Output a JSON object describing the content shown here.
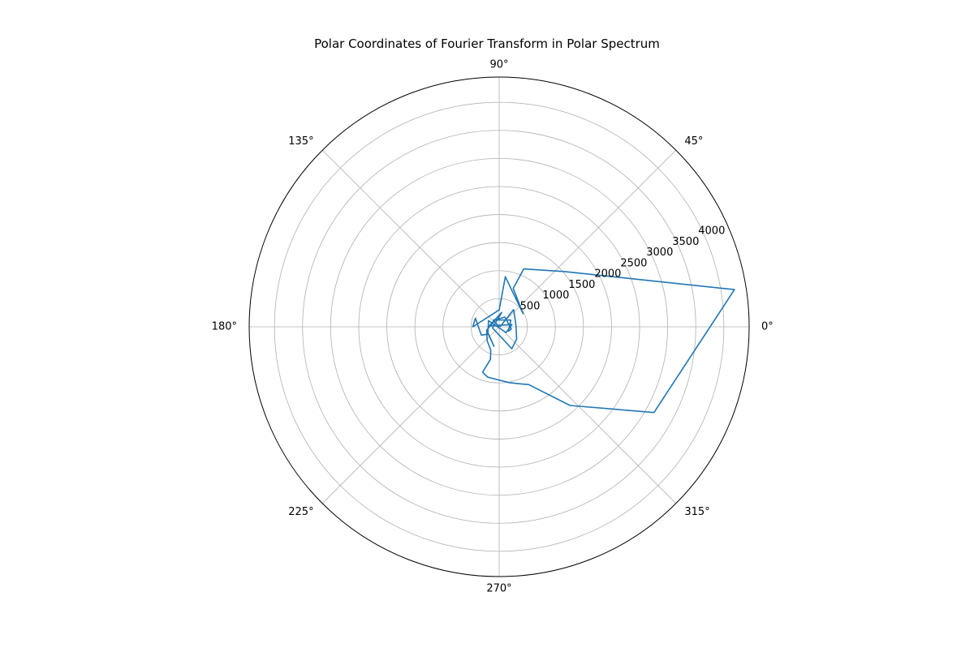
{
  "chart_data": {
    "type": "line",
    "projection": "polar",
    "title": "Polar Coordinates of Fourier Transform in Polar Spectrum",
    "theta_unit": "degrees",
    "theta_ticks": [
      "0°",
      "45°",
      "90°",
      "135°",
      "180°",
      "225°",
      "270°",
      "315°"
    ],
    "theta_tick_values": [
      0,
      45,
      90,
      135,
      180,
      225,
      270,
      315
    ],
    "r_ticks": [
      "500",
      "1000",
      "1500",
      "2000",
      "2500",
      "3000",
      "3500",
      "4000"
    ],
    "r_tick_values": [
      500,
      1000,
      1500,
      2000,
      2500,
      3000,
      3500,
      4000
    ],
    "r_label_angle": 22.5,
    "rlim": [
      0,
      4450
    ],
    "grid": true,
    "series": [
      {
        "color": "#1f77b4",
        "points": [
          {
            "theta": 0,
            "r": 15
          },
          {
            "theta": 50,
            "r": 400
          },
          {
            "theta": 5,
            "r": 300
          },
          {
            "theta": -35,
            "r": 380
          },
          {
            "theta": -60,
            "r": 450
          },
          {
            "theta": -170,
            "r": 120
          },
          {
            "theta": 80,
            "r": 260
          },
          {
            "theta": 175,
            "r": 180
          },
          {
            "theta": 10,
            "r": 230
          },
          {
            "theta": -40,
            "r": 160
          },
          {
            "theta": 150,
            "r": 220
          },
          {
            "theta": -150,
            "r": 230
          },
          {
            "theta": -105,
            "r": 360
          },
          {
            "theta": -145,
            "r": 230
          },
          {
            "theta": -155,
            "r": 350
          },
          {
            "theta": 160,
            "r": 450
          },
          {
            "theta": 180,
            "r": 470
          },
          {
            "theta": 90,
            "r": 300
          },
          {
            "theta": 83,
            "r": 900
          },
          {
            "theta": 29,
            "r": 485
          },
          {
            "theta": 70,
            "r": 730
          },
          {
            "theta": 67,
            "r": 1120
          },
          {
            "theta": 40,
            "r": 1530
          },
          {
            "theta": 9,
            "r": 4240
          },
          {
            "theta": -29,
            "r": 3150
          },
          {
            "theta": -48,
            "r": 1885
          },
          {
            "theta": -63,
            "r": 1155
          },
          {
            "theta": -68,
            "r": 1100
          },
          {
            "theta": -80,
            "r": 1010
          },
          {
            "theta": -103,
            "r": 920
          },
          {
            "theta": -110,
            "r": 860
          },
          {
            "theta": -105,
            "r": 600
          },
          {
            "theta": -110,
            "r": 440
          },
          {
            "theta": -130,
            "r": 330
          },
          {
            "theta": -165,
            "r": 230
          },
          {
            "theta": 120,
            "r": 140
          },
          {
            "theta": 60,
            "r": 200
          },
          {
            "theta": -10,
            "r": 220
          },
          {
            "theta": -25,
            "r": 180
          },
          {
            "theta": 30,
            "r": 240
          },
          {
            "theta": 130,
            "r": 160
          },
          {
            "theta": 0,
            "r": 0
          }
        ]
      }
    ]
  }
}
